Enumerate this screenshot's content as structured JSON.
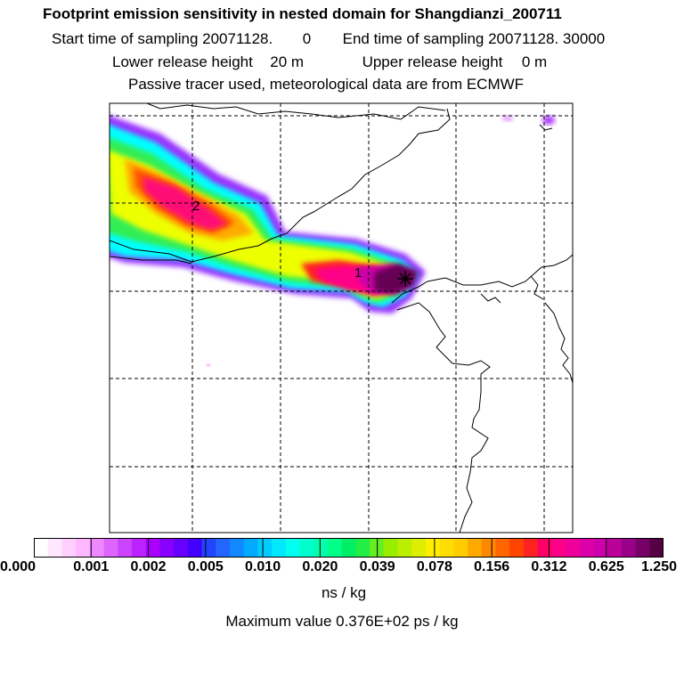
{
  "title": "Footprint emission sensitivity in nested domain for Shangdianzi_200711",
  "sampling": {
    "start_label": "Start time of sampling 20071128.",
    "start_value": "0",
    "end_label": "End time of sampling 20071128. 30000"
  },
  "release": {
    "lower_label": "Lower release height",
    "lower_value": "20 m",
    "upper_label": "Upper release height",
    "upper_value": "0 m"
  },
  "note": "Passive tracer used, meteorological data are from ECMWF",
  "map": {
    "markers": [
      {
        "label": "1",
        "kind": "age-class"
      },
      {
        "label": "2",
        "kind": "age-class"
      }
    ],
    "station_symbol": "release-point-asterisk-icon"
  },
  "colorbar": {
    "tick_labels": [
      "0.000",
      "0.001",
      "0.002",
      "0.005",
      "0.010",
      "0.020",
      "0.039",
      "0.078",
      "0.156",
      "0.312",
      "0.625",
      "1.250"
    ],
    "colors": [
      "#ffffff",
      "#ffe8ff",
      "#ffd0ff",
      "#ffb8ff",
      "#ee88ff",
      "#dd66ff",
      "#cc44ff",
      "#bb22ff",
      "#aa00ff",
      "#8800ff",
      "#6600ff",
      "#4400ff",
      "#2244ff",
      "#2266ff",
      "#1188ff",
      "#00aaff",
      "#00ccff",
      "#00e8ff",
      "#00ffee",
      "#00ffcc",
      "#00ffaa",
      "#00ff88",
      "#00ee66",
      "#22ee44",
      "#66ee22",
      "#99ee00",
      "#bbee00",
      "#ddee00",
      "#ffee00",
      "#ffdd00",
      "#ffcc00",
      "#ffaa00",
      "#ff8800",
      "#ff6600",
      "#ff4400",
      "#ff2222",
      "#ff0066",
      "#ff0088",
      "#ee0099",
      "#dd00aa",
      "#cc00aa",
      "#bb0099",
      "#990088",
      "#770066",
      "#550044"
    ],
    "units": "ns / kg"
  },
  "max_value": "Maximum value  0.376E+02 ps / kg"
}
